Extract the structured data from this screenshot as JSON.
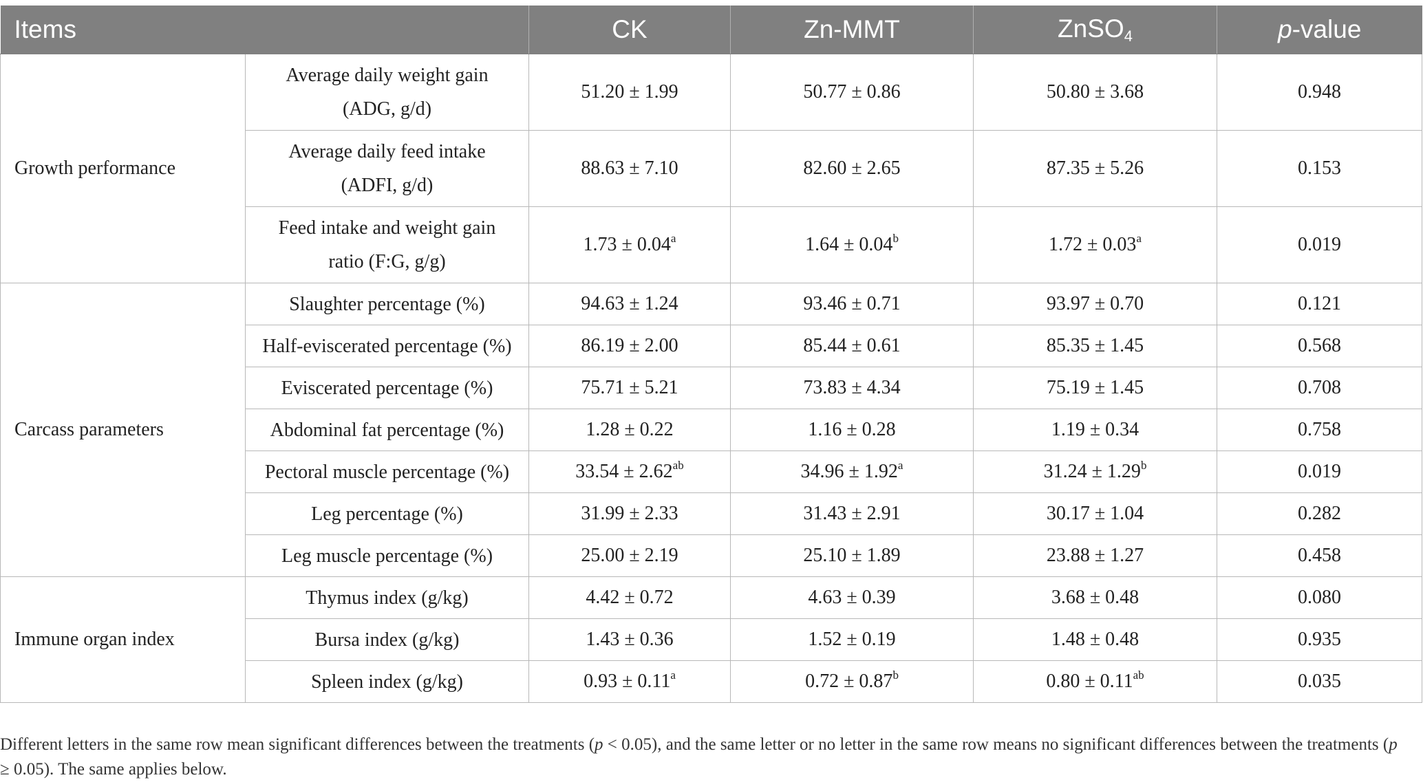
{
  "header": {
    "items": "Items",
    "ck": "CK",
    "znmmt": "Zn-MMT",
    "znso4_base": "ZnSO",
    "znso4_sub": "4",
    "p_italic": "p",
    "p_suffix": "-value"
  },
  "groups": [
    {
      "name": "Growth performance",
      "rows": [
        {
          "item_line1": "Average daily weight gain",
          "item_line2": "(ADG, g/d)",
          "ck": "51.20 ± 1.99",
          "ck_sup": "",
          "znmmt": "50.77 ± 0.86",
          "znmmt_sup": "",
          "znso4": "50.80 ± 3.68",
          "znso4_sup": "",
          "p": "0.948"
        },
        {
          "item_line1": "Average daily feed intake",
          "item_line2": "(ADFI, g/d)",
          "ck": "88.63 ± 7.10",
          "ck_sup": "",
          "znmmt": "82.60 ± 2.65",
          "znmmt_sup": "",
          "znso4": "87.35 ± 5.26",
          "znso4_sup": "",
          "p": "0.153"
        },
        {
          "item_line1": "Feed intake and weight gain",
          "item_line2": "ratio (F:G, g/g)",
          "ck": "1.73 ± 0.04",
          "ck_sup": "a",
          "znmmt": "1.64 ± 0.04",
          "znmmt_sup": "b",
          "znso4": "1.72 ± 0.03",
          "znso4_sup": "a",
          "p": "0.019"
        }
      ]
    },
    {
      "name": "Carcass parameters",
      "rows": [
        {
          "item_line1": "Slaughter percentage (%)",
          "ck": "94.63 ± 1.24",
          "ck_sup": "",
          "znmmt": "93.46 ± 0.71",
          "znmmt_sup": "",
          "znso4": "93.97 ± 0.70",
          "znso4_sup": "",
          "p": "0.121"
        },
        {
          "item_line1": "Half-eviscerated percentage (%)",
          "ck": "86.19 ± 2.00",
          "ck_sup": "",
          "znmmt": "85.44 ± 0.61",
          "znmmt_sup": "",
          "znso4": "85.35 ± 1.45",
          "znso4_sup": "",
          "p": "0.568"
        },
        {
          "item_line1": "Eviscerated percentage (%)",
          "ck": "75.71 ± 5.21",
          "ck_sup": "",
          "znmmt": "73.83 ± 4.34",
          "znmmt_sup": "",
          "znso4": "75.19 ± 1.45",
          "znso4_sup": "",
          "p": "0.708"
        },
        {
          "item_line1": "Abdominal fat percentage (%)",
          "ck": "1.28 ± 0.22",
          "ck_sup": "",
          "znmmt": "1.16 ± 0.28",
          "znmmt_sup": "",
          "znso4": "1.19 ± 0.34",
          "znso4_sup": "",
          "p": "0.758"
        },
        {
          "item_line1": "Pectoral muscle percentage (%)",
          "ck": "33.54 ± 2.62",
          "ck_sup": "ab",
          "znmmt": "34.96 ± 1.92",
          "znmmt_sup": "a",
          "znso4": "31.24 ± 1.29",
          "znso4_sup": "b",
          "p": "0.019"
        },
        {
          "item_line1": "Leg percentage (%)",
          "ck": "31.99 ± 2.33",
          "ck_sup": "",
          "znmmt": "31.43 ± 2.91",
          "znmmt_sup": "",
          "znso4": "30.17 ± 1.04",
          "znso4_sup": "",
          "p": "0.282"
        },
        {
          "item_line1": "Leg muscle percentage (%)",
          "ck": "25.00 ± 2.19",
          "ck_sup": "",
          "znmmt": "25.10 ± 1.89",
          "znmmt_sup": "",
          "znso4": "23.88 ± 1.27",
          "znso4_sup": "",
          "p": "0.458"
        }
      ]
    },
    {
      "name": "Immune organ index",
      "rows": [
        {
          "item_line1": "Thymus index (g/kg)",
          "ck": "4.42 ± 0.72",
          "ck_sup": "",
          "znmmt": "4.63 ± 0.39",
          "znmmt_sup": "",
          "znso4": "3.68 ± 0.48",
          "znso4_sup": "",
          "p": "0.080"
        },
        {
          "item_line1": "Bursa index (g/kg)",
          "ck": "1.43 ± 0.36",
          "ck_sup": "",
          "znmmt": "1.52 ± 0.19",
          "znmmt_sup": "",
          "znso4": "1.48 ± 0.48",
          "znso4_sup": "",
          "p": "0.935"
        },
        {
          "item_line1": "Spleen index (g/kg)",
          "ck": "0.93 ± 0.11",
          "ck_sup": "a",
          "znmmt": "0.72 ± 0.87",
          "znmmt_sup": "b",
          "znso4": "0.80 ± 0.11",
          "znso4_sup": "ab",
          "p": "0.035"
        }
      ]
    }
  ],
  "footnote": {
    "part1": "Different letters in the same row mean significant differences between the treatments (",
    "p1": "p",
    "part2": " < 0.05), and the same letter or no letter in the same row means no significant differences between the treatments (",
    "p2": "p",
    "part3": " ≥ 0.05). The same applies below."
  }
}
